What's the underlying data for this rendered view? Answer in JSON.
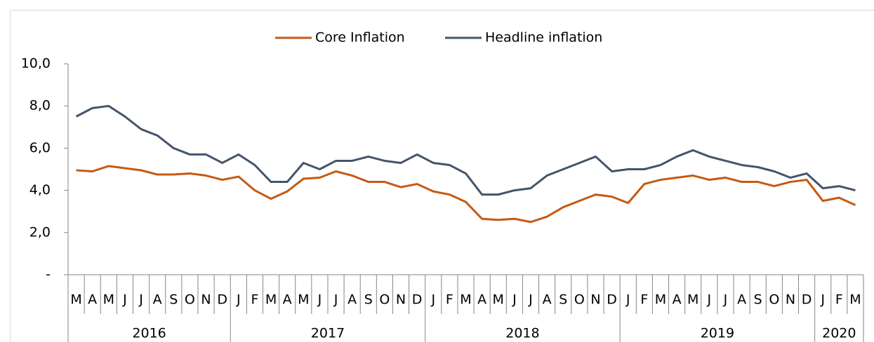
{
  "chart_data": {
    "type": "line",
    "categories": [
      "M",
      "A",
      "M",
      "J",
      "J",
      "A",
      "S",
      "O",
      "N",
      "D",
      "J",
      "F",
      "M",
      "A",
      "M",
      "J",
      "J",
      "A",
      "S",
      "O",
      "N",
      "D",
      "J",
      "F",
      "M",
      "A",
      "M",
      "J",
      "J",
      "A",
      "S",
      "O",
      "N",
      "D",
      "J",
      "F",
      "M",
      "A",
      "M",
      "J",
      "J",
      "A",
      "S",
      "O",
      "N",
      "D",
      "J",
      "F",
      "M"
    ],
    "year_labels": [
      "2016",
      null,
      null,
      null,
      null,
      null,
      null,
      null,
      null,
      null,
      "2017",
      null,
      null,
      null,
      null,
      null,
      null,
      null,
      null,
      null,
      null,
      null,
      "2018",
      null,
      null,
      null,
      null,
      null,
      null,
      null,
      null,
      null,
      null,
      null,
      "2019",
      null,
      null,
      null,
      null,
      null,
      null,
      null,
      null,
      null,
      null,
      null,
      "2020",
      null,
      null
    ],
    "series": [
      {
        "name": "Core Inflation",
        "color": "#c55a11",
        "values": [
          4.95,
          4.9,
          5.15,
          5.05,
          4.95,
          4.75,
          4.75,
          4.8,
          4.7,
          4.5,
          4.65,
          4.0,
          3.6,
          3.95,
          4.55,
          4.6,
          4.9,
          4.7,
          4.4,
          4.4,
          4.15,
          4.3,
          3.95,
          3.8,
          3.45,
          2.65,
          2.6,
          2.65,
          2.5,
          2.75,
          3.2,
          3.5,
          3.8,
          3.7,
          3.4,
          4.3,
          4.5,
          4.6,
          4.7,
          4.5,
          4.6,
          4.4,
          4.4,
          4.2,
          4.4,
          4.5,
          3.5,
          3.65,
          3.3
        ]
      },
      {
        "name": "Headline inflation",
        "color": "#44546a",
        "values": [
          7.5,
          7.9,
          8.0,
          7.5,
          6.9,
          6.6,
          6.0,
          5.7,
          5.7,
          5.3,
          5.7,
          5.2,
          4.4,
          4.4,
          5.3,
          5.0,
          5.4,
          5.4,
          5.6,
          5.4,
          5.3,
          5.7,
          5.3,
          5.2,
          4.8,
          3.8,
          3.8,
          4.0,
          4.1,
          4.7,
          5.0,
          5.3,
          5.6,
          4.9,
          5.0,
          5.0,
          5.2,
          5.6,
          5.9,
          5.6,
          5.4,
          5.2,
          5.1,
          4.9,
          4.6,
          4.8,
          4.1,
          4.2,
          4.0
        ]
      }
    ],
    "ylim": [
      0,
      10
    ],
    "yticks": [
      {
        "value": 0,
        "label": "-"
      },
      {
        "value": 2,
        "label": "2,0"
      },
      {
        "value": 4,
        "label": "4,0"
      },
      {
        "value": 6,
        "label": "6,0"
      },
      {
        "value": 8,
        "label": "8,0"
      },
      {
        "value": 10,
        "label": "10,0"
      }
    ],
    "legend": "top"
  }
}
